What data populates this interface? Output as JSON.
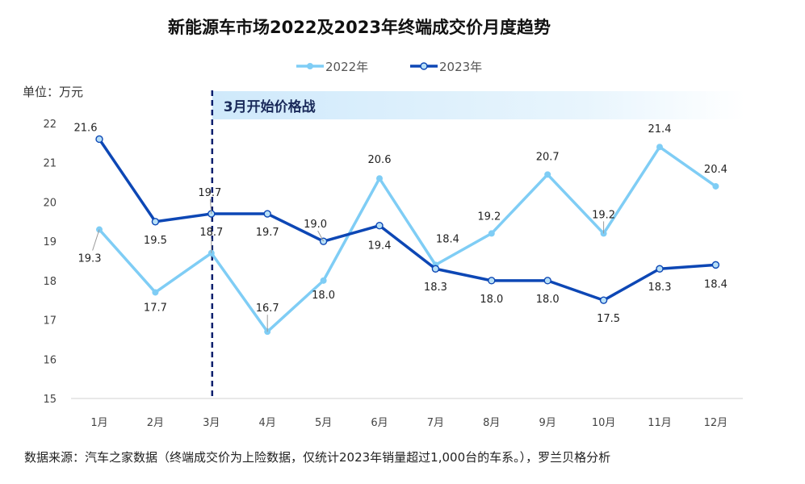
{
  "title": "新能源车市场2022及2023年终端成交价月度趋势",
  "unit_label": "单位：万元",
  "source_note": "数据来源：汽车之家数据（终端成交价为上险数据，仅统计2023年销量超过1,000台的车系。），罗兰贝格分析",
  "annotation": "3月开始价格战",
  "chart_data": {
    "type": "line",
    "categories": [
      "1月",
      "2月",
      "3月",
      "4月",
      "5月",
      "6月",
      "7月",
      "8月",
      "9月",
      "10月",
      "11月",
      "12月"
    ],
    "yticks": [
      "15",
      "16",
      "17",
      "18",
      "19",
      "20",
      "21",
      "22"
    ],
    "ylim": [
      15,
      22
    ],
    "marker_category": "3月",
    "series": [
      {
        "name": "2022年",
        "color": "#7fcdf5",
        "values": [
          19.3,
          17.7,
          18.7,
          16.7,
          18.0,
          20.6,
          18.4,
          19.2,
          20.7,
          19.2,
          21.4,
          20.4
        ],
        "labels": [
          "19.3",
          "17.7",
          "18.7",
          "16.7",
          "18.0",
          "20.6",
          "18.4",
          "19.2",
          "20.7",
          "19.2",
          "21.4",
          "20.4"
        ]
      },
      {
        "name": "2023年",
        "color": "#0d47b5",
        "values": [
          21.6,
          19.5,
          19.7,
          19.7,
          19.0,
          19.4,
          18.3,
          18.0,
          18.0,
          17.5,
          18.3,
          18.4
        ],
        "labels": [
          "21.6",
          "19.5",
          "19.7",
          "19.7",
          "19.0",
          "19.4",
          "18.3",
          "18.0",
          "18.0",
          "17.5",
          "18.3",
          "18.4"
        ]
      }
    ]
  }
}
